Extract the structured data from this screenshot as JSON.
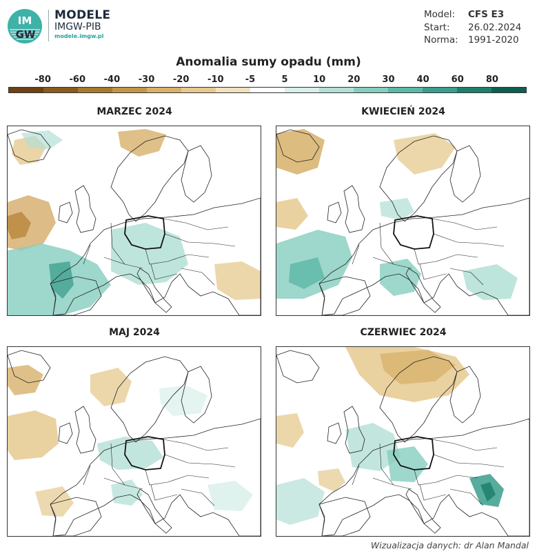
{
  "header": {
    "brand_line1": "MODELE",
    "brand_line2": "IMGW-PIB",
    "brand_url": "modele.imgw.pl",
    "logo_text_top": "IM",
    "logo_text_bottom": "GW"
  },
  "meta": [
    {
      "key": "Model:",
      "value": "CFS E3",
      "bold": true
    },
    {
      "key": "Start:",
      "value": "26.02.2024",
      "bold": false
    },
    {
      "key": "Norma:",
      "value": "1991-2020",
      "bold": false
    }
  ],
  "legend": {
    "title": "Anomalia sumy opadu (mm)",
    "ticks": [
      "-80",
      "-60",
      "-40",
      "-30",
      "-20",
      "-10",
      "-5",
      "5",
      "10",
      "20",
      "30",
      "40",
      "60",
      "80"
    ],
    "colors": [
      "#6b4212",
      "#8a5a1e",
      "#a9782f",
      "#c39548",
      "#d7b06a",
      "#e6c98f",
      "#f2e1bd",
      "#ffffff",
      "#d8efea",
      "#b3e0d6",
      "#86cdbf",
      "#5cb8a7",
      "#3a9e8c",
      "#1e7f6c",
      "#0f5e4f"
    ]
  },
  "panels": [
    {
      "title": "MARZEC 2024"
    },
    {
      "title": "KWIECIEŃ 2024"
    },
    {
      "title": "MAJ 2024"
    },
    {
      "title": "CZERWIEC 2024"
    }
  ],
  "credit": "Wizualizacja danych: dr Alan Mandal"
}
